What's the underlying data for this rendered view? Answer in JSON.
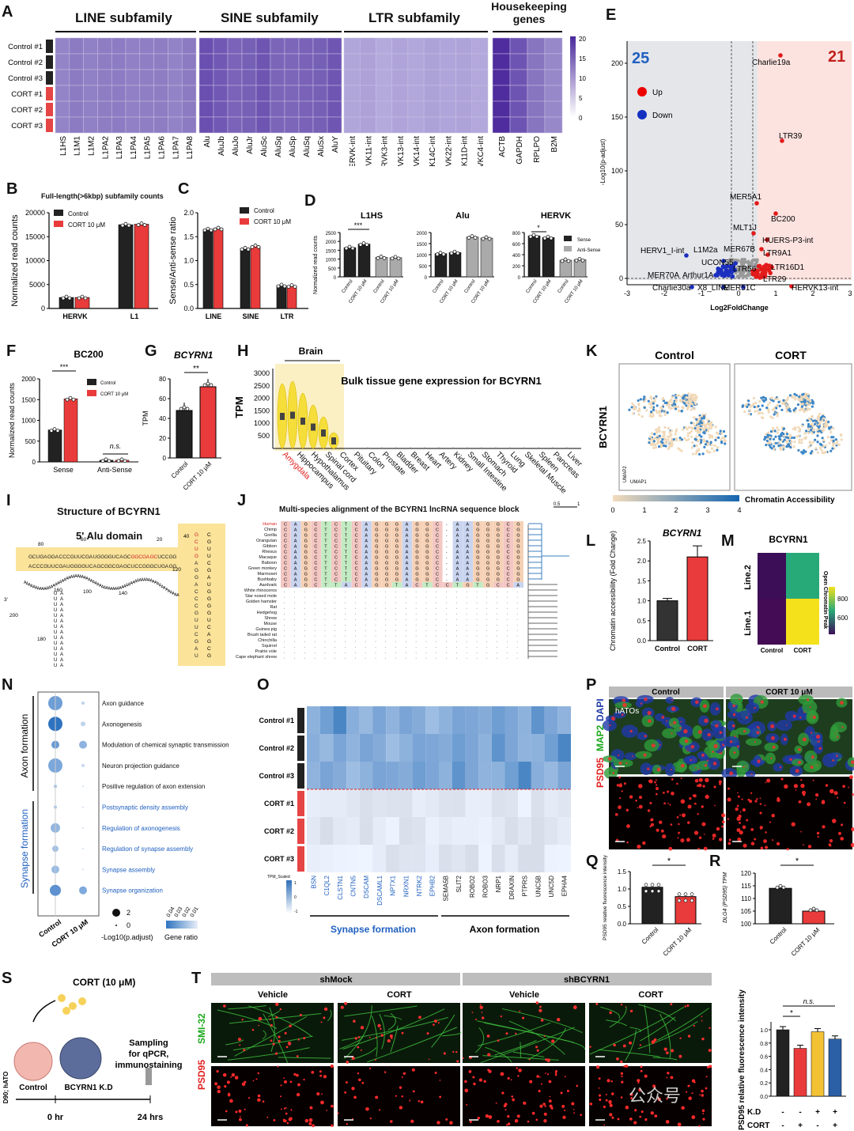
{
  "panels": {
    "A": {
      "letter": "A",
      "groups": [
        "LINE subfamily",
        "SINE subfamily",
        "LTR subfamily",
        "Housekeeping genes"
      ],
      "rows": [
        "Control #1",
        "Control #2",
        "Control #3",
        "CORT #1",
        "CORT #2",
        "CORT #3"
      ],
      "columns_line": [
        "L1HS",
        "L1M1",
        "L1M2",
        "L1PA2",
        "L1PA3",
        "L1PA4",
        "L1PA5",
        "L1PA6",
        "L1PA7",
        "L1PA8"
      ],
      "columns_sine": [
        "Alu",
        "AluJb",
        "AluJo",
        "AluJr",
        "AluSc",
        "AluSg",
        "AluSp",
        "AluSq",
        "AluSx",
        "AluY"
      ],
      "columns_ltr": [
        "HERVK-int",
        "HERVK11-int",
        "HERVK3-int",
        "HERVK13-int",
        "HERVK14-int",
        "HERVK14C-int",
        "HERVK22-int",
        "HERVK11D-int",
        "HERVKC4-int"
      ],
      "columns_hk": [
        "ACTB",
        "GAPDH",
        "RPLPO",
        "B2M"
      ],
      "scale": [
        "20",
        "15",
        "10",
        "5",
        "0"
      ]
    },
    "B": {
      "letter": "B",
      "title": "Full-length(>6kbp) subfamily counts",
      "ylabel": "Normalized read counts",
      "yticks": [
        "20000",
        "15000",
        "10000",
        "5000",
        "0"
      ],
      "categories": [
        "HERVK",
        "L1"
      ],
      "legend": [
        "Control",
        "CORT 10 μM"
      ]
    },
    "C": {
      "letter": "C",
      "ylabel": "Sense/Anti-sense ratio",
      "yticks": [
        "2.0",
        "1.5",
        "1.0",
        "0.5",
        "0.0"
      ],
      "categories": [
        "LINE",
        "SINE",
        "LTR"
      ],
      "legend": [
        "Control",
        "CORT 10 μM"
      ]
    },
    "D": {
      "letter": "D",
      "ylabel": "Normalized read counts",
      "subtitles": [
        "L1HS",
        "Alu",
        "HERVK"
      ],
      "legend": [
        "Sense",
        "Anti-Sense"
      ],
      "sig": [
        "***",
        "*"
      ],
      "yticks_l1hs": [
        "2500",
        "2000",
        "1500",
        "1000",
        "500",
        "0"
      ],
      "yticks_alu": [
        "2000",
        "1500",
        "1000",
        "500",
        "0"
      ],
      "yticks_hervk": [
        "800",
        "600",
        "400",
        "200",
        "0"
      ],
      "xlabels": [
        "Control",
        "CORT 10 μM",
        "Control",
        "CORT 10 μM"
      ]
    },
    "E": {
      "letter": "E",
      "up_count": "25",
      "down_count": "21",
      "legend": [
        "Up",
        "Down"
      ],
      "xlabel": "Log2FoldChange",
      "ylabel": "-Log10(p-adjust)",
      "xticks": [
        "-3",
        "-2",
        "-1",
        "0",
        "1",
        "2",
        "3"
      ],
      "yticks": [
        "200",
        "150",
        "100",
        "50",
        "0"
      ],
      "labels": [
        "Charlie19a",
        "LTR39",
        "MER5A1",
        "BC200",
        "MLT1J",
        "HUERS-P3-int",
        "MER67B",
        "LTR9A1",
        "HERV1_I-int",
        "L1M2a",
        "UCON55",
        "LTR16D1",
        "MER70A",
        "Arthur1A",
        "LTR56",
        "LTR29",
        "Charlie30a",
        "X8_LINE",
        "MER51C",
        "HERVK13-int"
      ]
    },
    "F": {
      "letter": "F",
      "title": "BC200",
      "ylabel": "Normalized read counts",
      "yticks": [
        "2000",
        "1500",
        "1000",
        "500",
        "0"
      ],
      "categories": [
        "Sense",
        "Anti-Sense"
      ],
      "legend": [
        "Control",
        "CORT 10 μM"
      ],
      "sig": [
        "***",
        "n.s."
      ]
    },
    "G": {
      "letter": "G",
      "title": "BCYRN1",
      "ylabel": "TPM",
      "yticks": [
        "80",
        "60",
        "40",
        "20",
        "0"
      ],
      "categories": [
        "Control",
        "CORT 10 μM"
      ],
      "sig": "**"
    },
    "H": {
      "letter": "H",
      "title": "Bulk tissue gene expression for BCYRN1",
      "bracket": "Brain",
      "ylabel": "TPM",
      "yticks": [
        "3000",
        "2500",
        "2000",
        "1500",
        "1000",
        "500"
      ],
      "tissues": [
        "Amygdala",
        "Hippocampus",
        "Hypothalamus",
        "Spinal cord",
        "Cortex",
        "Pituitary",
        "Colon",
        "Prostate",
        "Bladder",
        "Breast",
        "Heart",
        "Artery",
        "Kidney",
        "Small Intestine",
        "Stomach",
        "Thyroid",
        "Lung",
        "Skeletal Muscle",
        "Spleen",
        "Pancreas",
        "Liver"
      ]
    },
    "I": {
      "letter": "I",
      "title": "Structure of BCYRN1",
      "domain": "5' Alu domain",
      "nums": [
        "80",
        "60",
        "40",
        "20",
        "100",
        "120",
        "160",
        "140",
        "180",
        "200",
        "3'"
      ]
    },
    "J": {
      "letter": "J",
      "title": "Multi-species alignment of the BCYRN1 lncRNA sequence block",
      "scale": [
        "0.5",
        "1"
      ],
      "species": [
        "Human",
        "Chimp",
        "Gorilla",
        "Orangutan",
        "Gibbon",
        "Rhesus",
        "Macaque",
        "Baboon",
        "Green monkey",
        "Marmoset",
        "Bushbaby",
        "Aardvark",
        "White rhinoceros",
        "Star nosed mole",
        "Golden hamster",
        "Rat",
        "Hedgehog",
        "Shrew",
        "Mouse",
        "Guinea pig",
        "Brush tailed rat",
        "Chinchilla",
        "Squirrel",
        "Prairie vole",
        "Cape elephant shrew"
      ],
      "seq": "CAGCTCTCAGGGAGGC-AAGGGCG",
      "aardvark_seq": "CAGCTTACAGGTACTCCTGTGCCA"
    },
    "K": {
      "letter": "K",
      "titles": [
        "Control",
        "CORT"
      ],
      "gene": "BCYRN1",
      "legend_title": "Chromatin Accessibility",
      "legend_ticks": [
        "0",
        "1",
        "2",
        "3",
        "4"
      ],
      "axes": [
        "UMAP2",
        "UMAP1"
      ]
    },
    "L": {
      "letter": "L",
      "title": "BCYRN1",
      "ylabel": "Chromatin accessibility (Fold Change)",
      "yticks": [
        "2.5",
        "2.0",
        "1.5",
        "1.0",
        "0.5",
        "0.0"
      ],
      "categories": [
        "Control",
        "CORT"
      ]
    },
    "M": {
      "letter": "M",
      "title": "BCYRN1",
      "rows": [
        "Line.2",
        "Line.1"
      ],
      "cols": [
        "Control",
        "CORT"
      ],
      "legend_title": "Open Chromatin Peak",
      "legend_ticks": [
        "800",
        "600"
      ]
    },
    "N": {
      "letter": "N",
      "groups": [
        "Axon formation",
        "Synapse formation"
      ],
      "terms": [
        "Axon guidance",
        "Axonogenesis",
        "Modulation of chemical synaptic transmission",
        "Neuron projection guidance",
        "Positive regulation of axon extension",
        "Postsynaptic density assembly",
        "Regulation of axonogenesis",
        "Regulation of synapse assembly",
        "Synapse assembly",
        "Synapse organization"
      ],
      "xlabels": [
        "Control",
        "CORT 10 μM"
      ],
      "size_legend": [
        "2",
        "0"
      ],
      "size_title": "-Log10(p.adjust)",
      "ratio_legend": [
        "0.04",
        "0.03",
        "0.02",
        "0.01"
      ],
      "ratio_title": "Gene ratio"
    },
    "O": {
      "letter": "O",
      "rows": [
        "Control #1",
        "Control #2",
        "Control #3",
        "CORT #1",
        "CORT #2",
        "CORT #3"
      ],
      "genes": [
        "BSN",
        "C1QL2",
        "CLSTN1",
        "CNTN5",
        "DSCAM",
        "DSCAML1",
        "NPTX1",
        "NRXN1",
        "NTRK2",
        "EPHB2",
        "SEMA5B",
        "SLIT2",
        "ROBO2",
        "ROBO3",
        "NRP1",
        "DRAXIN",
        "PTPRS",
        "UNC5B",
        "UNC5D",
        "EPHA4"
      ],
      "groups": [
        "Synapse formation",
        "Axon formation"
      ],
      "scale_title": "TPM_Scaled",
      "scale_ticks": [
        "1",
        "0",
        "-1"
      ]
    },
    "P": {
      "letter": "P",
      "cols": [
        "Control",
        "CORT 10 μM"
      ],
      "label_hatos": "hATOs",
      "ylabel_psd": "PSD95",
      "ylabel_map": "MAP2",
      "ylabel_dapi": "DAPI"
    },
    "Q": {
      "letter": "Q",
      "ylabel": "PSD95 relative fluorescence intensity",
      "yticks": [
        "1.5",
        "1.0",
        "0.5",
        "0.0"
      ],
      "categories": [
        "Control",
        "CORT 10 μM"
      ],
      "sig": "*"
    },
    "R": {
      "letter": "R",
      "ylabel": "DLG4 (PSD95) TPM",
      "yticks": [
        "120",
        "115",
        "110",
        "105",
        "100"
      ],
      "categories": [
        "Control",
        "CORT 10 μM"
      ],
      "sig": "*"
    },
    "S": {
      "letter": "S",
      "cort": "CORT (10 μM)",
      "ylabel": "D90; hATO",
      "labels": [
        "Control",
        "BCYRN1 K.D"
      ],
      "sampling": "Sampling for qPCR, immunostaining",
      "times": [
        "0 hr",
        "24 hrs"
      ]
    },
    "T": {
      "letter": "T",
      "groups": [
        "shMock",
        "shBCYRN1"
      ],
      "cols": [
        "Vehicle",
        "CORT",
        "Vehicle",
        "CORT"
      ],
      "ylabel_psd": "PSD95",
      "ylabel_smi": "SMI-32",
      "chart_ylabel": "PSD95 relative fluorescence intensity",
      "yticks": [
        "1.0",
        "0.8",
        "0.6",
        "0.4",
        "0.2",
        "0.0"
      ],
      "kd": "K.D",
      "cort": "CORT",
      "kd_signs": [
        "-",
        "-",
        "+",
        "+"
      ],
      "cort_signs": [
        "-",
        "+",
        "-",
        "+"
      ],
      "sig": [
        "*",
        "n.s."
      ],
      "watermark": "公众号"
    }
  },
  "chart_data": [
    {
      "type": "bar",
      "panel": "B",
      "categories": [
        "HERVK",
        "L1"
      ],
      "series": [
        {
          "name": "Control",
          "values": [
            2300,
            17500
          ]
        },
        {
          "name": "CORT 10 μM",
          "values": [
            2300,
            17600
          ]
        }
      ],
      "ylim": [
        0,
        20000
      ]
    },
    {
      "type": "bar",
      "panel": "C",
      "categories": [
        "LINE",
        "SINE",
        "LTR"
      ],
      "series": [
        {
          "name": "Control",
          "values": [
            1.65,
            1.25,
            0.48
          ]
        },
        {
          "name": "CORT 10 μM",
          "values": [
            1.67,
            1.3,
            0.47
          ]
        }
      ],
      "ylim": [
        0,
        2
      ]
    },
    {
      "type": "bar",
      "panel": "F",
      "categories": [
        "Sense",
        "Anti-Sense"
      ],
      "series": [
        {
          "name": "Control",
          "values": [
            770,
            40
          ]
        },
        {
          "name": "CORT 10 μM",
          "values": [
            1520,
            40
          ]
        }
      ],
      "ylim": [
        0,
        2000
      ]
    },
    {
      "type": "bar",
      "panel": "G",
      "categories": [
        "Control",
        "CORT 10 μM"
      ],
      "values": [
        48,
        72
      ],
      "ylim": [
        0,
        80
      ]
    },
    {
      "type": "bar",
      "panel": "L",
      "categories": [
        "Control",
        "CORT"
      ],
      "values": [
        1.0,
        2.1
      ],
      "ylim": [
        0,
        2.5
      ]
    },
    {
      "type": "bar",
      "panel": "Q",
      "categories": [
        "Control",
        "CORT 10 μM"
      ],
      "values": [
        1.05,
        0.78
      ],
      "ylim": [
        0,
        1.5
      ]
    },
    {
      "type": "bar",
      "panel": "R",
      "categories": [
        "Control",
        "CORT 10 μM"
      ],
      "values": [
        114,
        105
      ],
      "ylim": [
        100,
        120
      ]
    },
    {
      "type": "bar",
      "panel": "T",
      "categories": [
        "1",
        "2",
        "3",
        "4"
      ],
      "values": [
        1.0,
        0.72,
        0.97,
        0.86
      ],
      "ylim": [
        0,
        1.0
      ]
    }
  ]
}
